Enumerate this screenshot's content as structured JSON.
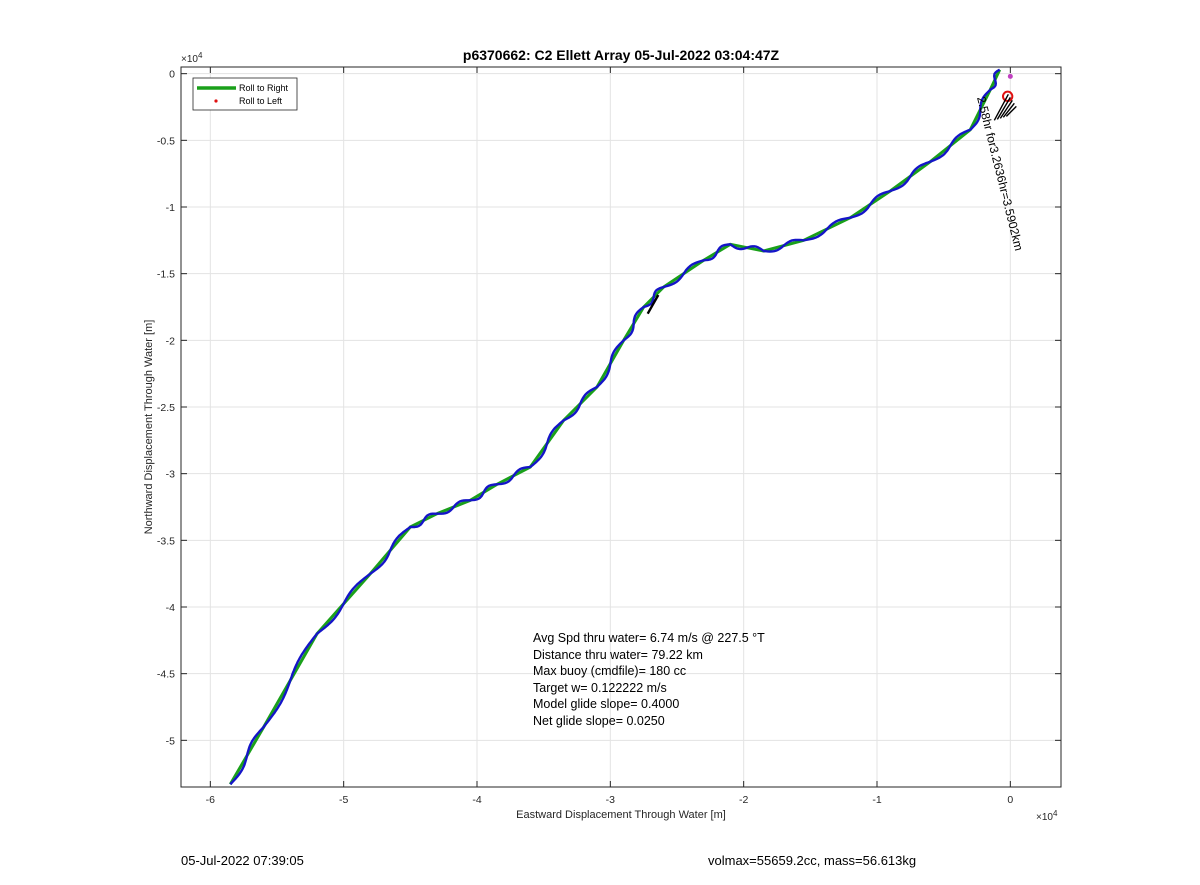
{
  "chart_data": {
    "type": "line",
    "title": "p6370662: C2 Ellett Array 05-Jul-2022 03:04:47Z",
    "xlabel": "Eastward Displacement Through Water [m]",
    "ylabel": "Northward Displacement Through Water [m]",
    "x_exponent": "×10",
    "x_exponent_power": "4",
    "y_exponent": "×10",
    "y_exponent_power": "4",
    "xlim": [
      -6.22,
      0.38
    ],
    "ylim": [
      -5.35,
      0.05
    ],
    "xticks": [
      -6,
      -5,
      -4,
      -3,
      -2,
      -1,
      0
    ],
    "xtick_labels": [
      "-6",
      "-5",
      "-4",
      "-3",
      "-2",
      "-1",
      "0"
    ],
    "yticks": [
      0,
      -0.5,
      -1,
      -1.5,
      -2,
      -2.5,
      -3,
      -3.5,
      -4,
      -4.5,
      -5
    ],
    "ytick_labels": [
      "0",
      "-0.5",
      "-1",
      "-1.5",
      "-2",
      "-2.5",
      "-3",
      "-3.5",
      "-4",
      "-4.5",
      "-5"
    ],
    "grid": true,
    "legend": {
      "placement": "top-left",
      "entries": [
        {
          "label": "Roll to Right",
          "color": "#1aa01a",
          "style": "line"
        },
        {
          "label": "Roll to Left",
          "color": "#e01010",
          "style": "dot"
        }
      ]
    },
    "series": [
      {
        "color": "#1aa01a",
        "x": [
          -5.85,
          -5.6,
          -5.2,
          -4.8,
          -4.5,
          -4.3,
          -4.05,
          -3.85,
          -3.6,
          -3.35,
          -3.1,
          -2.9,
          -2.75,
          -2.6,
          -2.3,
          -2.1,
          -1.85,
          -1.55,
          -1.2,
          -0.9,
          -0.6,
          -0.3,
          -0.15,
          -0.08
        ],
        "y": [
          -5.33,
          -4.9,
          -4.2,
          -3.75,
          -3.4,
          -3.3,
          -3.2,
          -3.08,
          -2.95,
          -2.6,
          -2.35,
          -2.0,
          -1.75,
          -1.6,
          -1.4,
          -1.28,
          -1.33,
          -1.25,
          -1.08,
          -0.88,
          -0.66,
          -0.42,
          -0.12,
          0.03
        ]
      },
      {
        "color": "#1515c8",
        "x": [
          -5.85,
          -5.6,
          -5.2,
          -4.8,
          -4.5,
          -4.3,
          -4.05,
          -3.85,
          -3.6,
          -3.35,
          -3.1,
          -2.9,
          -2.75,
          -2.6,
          -2.3,
          -2.1,
          -1.85,
          -1.55,
          -1.2,
          -0.9,
          -0.6,
          -0.3,
          -0.15,
          -0.08
        ],
        "y": [
          -5.33,
          -4.9,
          -4.2,
          -3.75,
          -3.4,
          -3.3,
          -3.2,
          -3.08,
          -2.95,
          -2.6,
          -2.35,
          -2.0,
          -1.75,
          -1.6,
          -1.4,
          -1.28,
          -1.33,
          -1.25,
          -1.08,
          -0.88,
          -0.66,
          -0.42,
          -0.12,
          0.03
        ],
        "wiggle": 0.025
      },
      {
        "color": "#000000",
        "x": [
          -2.72,
          -2.68,
          -2.64
        ],
        "y": [
          -1.8,
          -1.73,
          -1.66
        ]
      }
    ],
    "end_circle": {
      "x": -0.02,
      "y": -0.17,
      "r": 0.035,
      "color": "#e01010"
    },
    "end_marker": {
      "x": 0.0,
      "y": -0.02,
      "color": "#c040c0"
    },
    "segment_label": {
      "text": "2.58hr for3.2636hr=3.5902km",
      "x": -0.25,
      "y": -0.18,
      "rotation_deg": 76
    },
    "annotations": [
      "Avg Spd thru water=  6.74 m/s @ 227.5 °T",
      "Distance thru water= 79.22 km",
      "Max buoy (cmdfile)= 180 cc",
      "Target w= 0.122222 m/s",
      "Model glide slope= 0.4000",
      "Net glide slope= 0.0250"
    ]
  },
  "footer": {
    "left": "05-Jul-2022 07:39:05",
    "right": "volmax=55659.2cc, mass=56.613kg"
  }
}
